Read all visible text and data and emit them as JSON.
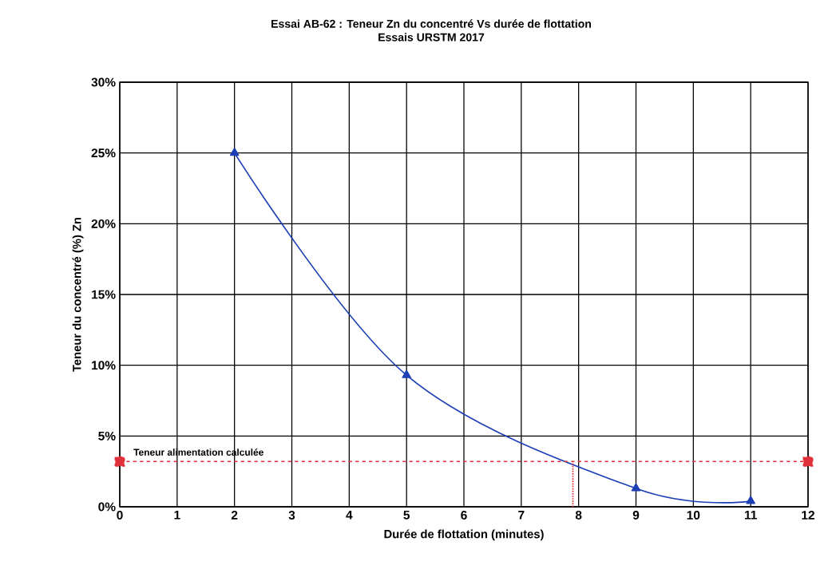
{
  "chart_data": {
    "type": "line",
    "title": "Essai AB-62 : Teneur Zn du concentré Vs durée de flottation",
    "subtitle": "Essais URSTM 2017",
    "xlabel": "Durée de flottation (minutes)",
    "ylabel": "Teneur du concentré (%) Zn",
    "xlim": [
      0,
      12
    ],
    "xticks": [
      0,
      1,
      2,
      3,
      4,
      5,
      6,
      7,
      8,
      9,
      10,
      11,
      12
    ],
    "ylim": [
      0,
      30
    ],
    "yticks": [
      {
        "value": 0,
        "label": "0%"
      },
      {
        "value": 5,
        "label": "5%"
      },
      {
        "value": 10,
        "label": "10%"
      },
      {
        "value": 15,
        "label": "15%"
      },
      {
        "value": 20,
        "label": "20%"
      },
      {
        "value": 25,
        "label": "25%"
      },
      {
        "value": 30,
        "label": "30%"
      }
    ],
    "grid": true,
    "series": [
      {
        "color": "#1c3fb5",
        "x": [
          2,
          5,
          9,
          11
        ],
        "values": [
          25,
          9.3,
          1.3,
          0.4
        ],
        "marker": "triangle",
        "line_style": "solid"
      },
      {
        "name": "Teneur alimentation calculée",
        "color": "#e0303a",
        "x": [
          0,
          12
        ],
        "values": [
          3.2,
          3.2
        ],
        "marker": "square",
        "line_style": "dashed"
      },
      {
        "color": "#e0303a",
        "x": [
          7.9,
          7.9
        ],
        "values": [
          0,
          3.2
        ],
        "marker": "none",
        "line_style": "dotted"
      }
    ]
  }
}
